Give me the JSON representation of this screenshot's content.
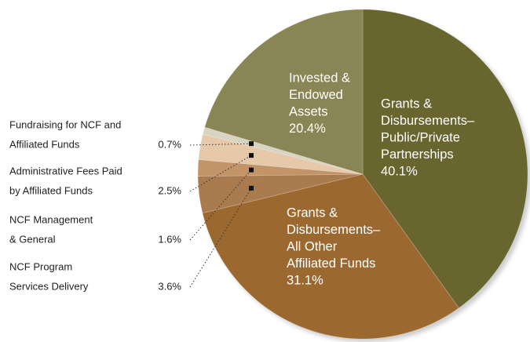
{
  "chart_data": {
    "type": "pie",
    "categories": [
      [
        "Grants &",
        "Disbursements–",
        "Public/Private",
        "Partnerships"
      ],
      [
        "Grants &",
        "Disbursements–",
        "All Other",
        "Affiliated Funds"
      ],
      [
        "NCF Program",
        "Services Delivery"
      ],
      [
        "NCF Management",
        "& General"
      ],
      [
        "Administrative Fees Paid",
        "by Affiliated Funds"
      ],
      [
        "Fundraising for NCF and",
        "Affiliated Funds"
      ],
      [
        "Invested &",
        "Endowed",
        "Assets"
      ]
    ],
    "values": [
      40.1,
      31.1,
      3.6,
      1.6,
      2.5,
      0.7,
      20.4
    ],
    "value_labels": [
      "40.1%",
      "31.1%",
      "3.6%",
      "1.6%",
      "2.5%",
      "0.7%",
      "20.4%"
    ],
    "colors": [
      "#68652f",
      "#9b692f",
      "#a97b4e",
      "#c39468",
      "#e6c9a9",
      "#d8d4c2",
      "#8a8554"
    ]
  }
}
